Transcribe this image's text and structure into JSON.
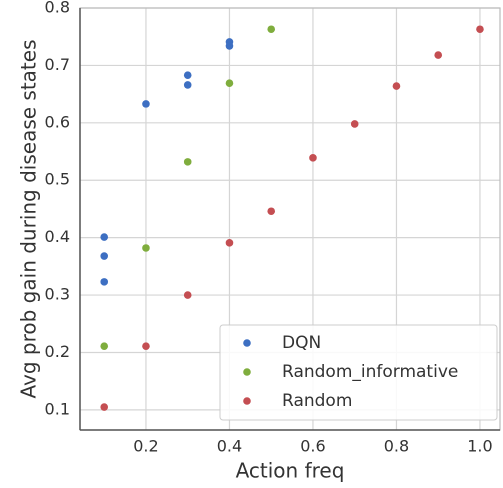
{
  "chart_data": {
    "type": "scatter",
    "xlabel": "Action freq",
    "ylabel": "Avg prob gain during disease states",
    "xlim": [
      0.042,
      1.048
    ],
    "ylim": [
      0.065,
      0.8
    ],
    "xticks": [
      0.2,
      0.4,
      0.6,
      0.8,
      {
        "value": 1,
        "label": "1.0"
      }
    ],
    "yticks": [
      0.1,
      0.2,
      0.3,
      0.4,
      0.5,
      0.6,
      0.7,
      0.8
    ],
    "grid": true,
    "legend": "lower right",
    "series": [
      {
        "name": "DQN",
        "color": "#3d6fc2",
        "x": [
          0.1,
          0.1,
          0.1,
          0.2,
          0.3,
          0.3,
          0.4,
          0.4
        ],
        "values": [
          0.401,
          0.368,
          0.323,
          0.633,
          0.683,
          0.666,
          0.741,
          0.734
        ]
      },
      {
        "name": "Random_informative",
        "color": "#7fad3d",
        "x": [
          0.1,
          0.2,
          0.3,
          0.4,
          0.5
        ],
        "values": [
          0.211,
          0.382,
          0.532,
          0.669,
          0.763
        ]
      },
      {
        "name": "Random",
        "color": "#c44e52",
        "x": [
          0.1,
          0.2,
          0.3,
          0.4,
          0.5,
          0.6,
          0.7,
          0.8,
          0.9,
          1.0
        ],
        "values": [
          0.105,
          0.211,
          0.3,
          0.391,
          0.446,
          0.539,
          0.598,
          0.664,
          0.718,
          0.763
        ]
      }
    ]
  }
}
